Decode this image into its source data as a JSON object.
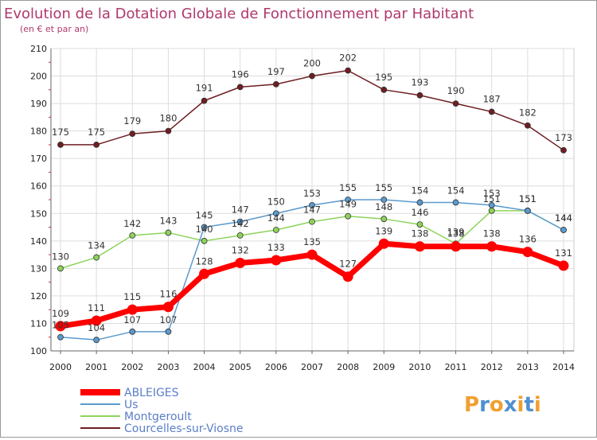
{
  "chart_data": {
    "type": "line",
    "title": "Evolution de la Dotation Globale de Fonctionnement par Habitant",
    "subtitle": "(en € et par an)",
    "x": [
      "2000",
      "2001",
      "2002",
      "2003",
      "2004",
      "2005",
      "2006",
      "2007",
      "2008",
      "2009",
      "2010",
      "2011",
      "2012",
      "2013",
      "2014"
    ],
    "ylim": [
      100,
      210
    ],
    "yticks": [
      100,
      110,
      120,
      130,
      140,
      150,
      160,
      170,
      180,
      190,
      200,
      210
    ],
    "grid": true,
    "legend_position": "bottom-left",
    "series": [
      {
        "name": "Courcelles-sur-Viosne",
        "color": "#6e1e23",
        "values": [
          175,
          175,
          179,
          180,
          191,
          196,
          197,
          200,
          202,
          195,
          193,
          190,
          187,
          182,
          173
        ]
      },
      {
        "name": "Montgeroult",
        "color": "#8ed35b",
        "values": [
          130,
          134,
          142,
          143,
          140,
          142,
          144,
          147,
          149,
          148,
          146,
          139,
          151,
          151,
          144
        ]
      },
      {
        "name": "Us",
        "color": "#5b9acd",
        "values": [
          105,
          104,
          107,
          107,
          145,
          147,
          150,
          153,
          155,
          155,
          154,
          154,
          153,
          151,
          144
        ]
      },
      {
        "name": "ABLEIGES",
        "color": "#ff0000",
        "values": [
          109,
          111,
          115,
          116,
          128,
          132,
          133,
          135,
          127,
          139,
          138,
          138,
          138,
          136,
          131
        ]
      }
    ]
  },
  "logo": {
    "letters": [
      "P",
      "r",
      "o",
      "x",
      "i",
      "t",
      "i"
    ],
    "colors": [
      "#f0a030",
      "#5090d0",
      "#f0a030",
      "#5090d0",
      "#f0a030",
      "#5090d0",
      "#f0a030"
    ]
  }
}
